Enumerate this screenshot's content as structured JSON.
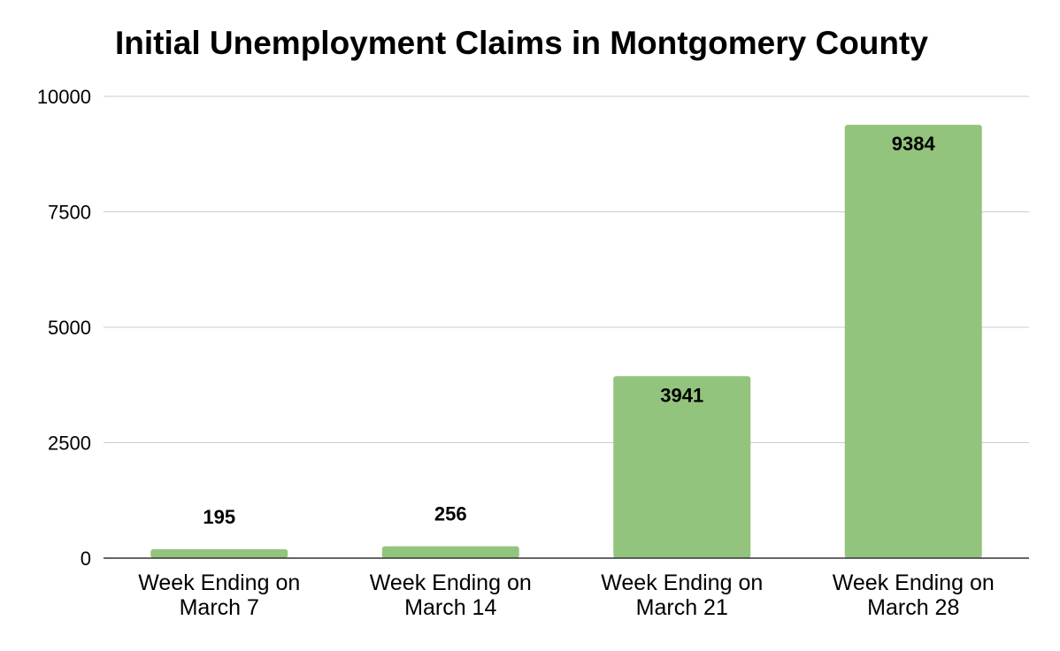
{
  "chart_data": {
    "type": "bar",
    "title": "Initial Unemployment Claims in Montgomery County",
    "xlabel": "",
    "ylabel": "",
    "categories": [
      [
        "Week Ending on",
        "March 7"
      ],
      [
        "Week Ending on",
        "March 14"
      ],
      [
        "Week Ending on",
        "March 21"
      ],
      [
        "Week Ending on",
        "March 28"
      ]
    ],
    "values": [
      195,
      256,
      3941,
      9384
    ],
    "data_labels": [
      "195",
      "256",
      "3941",
      "9384"
    ],
    "ylim": [
      0,
      10000
    ],
    "yticks": [
      0,
      2500,
      5000,
      7500,
      10000
    ],
    "ytick_labels": [
      "0",
      "2500",
      "5000",
      "7500",
      "10000"
    ],
    "grid": true,
    "legend": "none",
    "colors": {
      "bar": "#93c47d",
      "grid": "#cccccc",
      "axis": "#333333",
      "text": "#000000"
    }
  }
}
